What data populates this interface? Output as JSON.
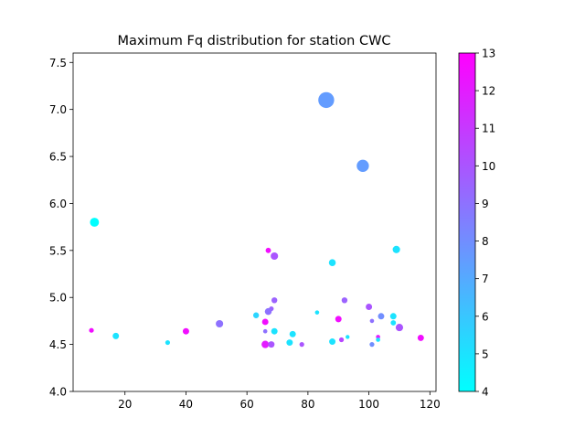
{
  "chart_data": {
    "type": "scatter",
    "title": "Maximum Fq distribution for station CWC",
    "xlabel": "",
    "ylabel": "",
    "xlim": [
      3,
      122
    ],
    "ylim": [
      4.0,
      7.6
    ],
    "xticks": [
      20,
      40,
      60,
      80,
      100,
      120
    ],
    "yticks": [
      4.0,
      4.5,
      5.0,
      5.5,
      6.0,
      6.5,
      7.0,
      7.5
    ],
    "xtick_labels": [
      "20",
      "40",
      "60",
      "80",
      "100",
      "120"
    ],
    "ytick_labels": [
      "4.0",
      "4.5",
      "5.0",
      "5.5",
      "6.0",
      "6.5",
      "7.0",
      "7.5"
    ],
    "grid": false,
    "colorbar": {
      "colormap": "cool",
      "range": [
        4,
        13
      ],
      "ticks": [
        4,
        5,
        6,
        7,
        8,
        9,
        10,
        11,
        12,
        13
      ],
      "tick_labels": [
        "4",
        "5",
        "6",
        "7",
        "8",
        "9",
        "10",
        "11",
        "12",
        "13"
      ],
      "color_low": "#00ffff",
      "color_high": "#ff00ff"
    },
    "points": [
      {
        "x": 86,
        "y": 7.1,
        "c": 7.5,
        "m": 7.1
      },
      {
        "x": 98,
        "y": 6.4,
        "c": 7.5,
        "m": 6.4
      },
      {
        "x": 10,
        "y": 5.8,
        "c": 4.0,
        "m": 5.8
      },
      {
        "x": 109,
        "y": 5.51,
        "c": 5.0,
        "m": 5.5
      },
      {
        "x": 67,
        "y": 5.5,
        "c": 12.5,
        "m": 5.1
      },
      {
        "x": 69,
        "y": 5.44,
        "c": 10.0,
        "m": 5.5
      },
      {
        "x": 88,
        "y": 5.37,
        "c": 5.0,
        "m": 5.4
      },
      {
        "x": 69,
        "y": 4.97,
        "c": 9.5,
        "m": 5.2
      },
      {
        "x": 92,
        "y": 4.97,
        "c": 9.5,
        "m": 5.2
      },
      {
        "x": 100,
        "y": 4.9,
        "c": 10.0,
        "m": 5.3
      },
      {
        "x": 68,
        "y": 4.88,
        "c": 9.5,
        "m": 5.0
      },
      {
        "x": 67,
        "y": 4.85,
        "c": 9.0,
        "m": 5.4
      },
      {
        "x": 83,
        "y": 4.84,
        "c": 5.0,
        "m": 4.9
      },
      {
        "x": 63,
        "y": 4.81,
        "c": 5.5,
        "m": 5.2
      },
      {
        "x": 104,
        "y": 4.8,
        "c": 8.0,
        "m": 5.3
      },
      {
        "x": 108,
        "y": 4.8,
        "c": 5.0,
        "m": 5.3
      },
      {
        "x": 90,
        "y": 4.77,
        "c": 12.5,
        "m": 5.3
      },
      {
        "x": 101,
        "y": 4.75,
        "c": 9.0,
        "m": 4.9
      },
      {
        "x": 66,
        "y": 4.74,
        "c": 12.5,
        "m": 5.3
      },
      {
        "x": 108,
        "y": 4.73,
        "c": 5.0,
        "m": 5.1
      },
      {
        "x": 51,
        "y": 4.72,
        "c": 9.0,
        "m": 5.5
      },
      {
        "x": 110,
        "y": 4.68,
        "c": 10.0,
        "m": 5.5
      },
      {
        "x": 9,
        "y": 4.65,
        "c": 12.5,
        "m": 5.0
      },
      {
        "x": 40,
        "y": 4.64,
        "c": 12.5,
        "m": 5.3
      },
      {
        "x": 66,
        "y": 4.64,
        "c": 9.0,
        "m": 4.9
      },
      {
        "x": 69,
        "y": 4.64,
        "c": 5.0,
        "m": 5.3
      },
      {
        "x": 75,
        "y": 4.61,
        "c": 5.0,
        "m": 5.3
      },
      {
        "x": 17,
        "y": 4.59,
        "c": 5.0,
        "m": 5.3
      },
      {
        "x": 93,
        "y": 4.58,
        "c": 5.0,
        "m": 4.5
      },
      {
        "x": 103,
        "y": 4.58,
        "c": 12.0,
        "m": 4.9
      },
      {
        "x": 117,
        "y": 4.57,
        "c": 12.5,
        "m": 5.3
      },
      {
        "x": 91,
        "y": 4.55,
        "c": 10.5,
        "m": 5.0
      },
      {
        "x": 103,
        "y": 4.55,
        "c": 5.0,
        "m": 4.9
      },
      {
        "x": 88,
        "y": 4.53,
        "c": 5.0,
        "m": 5.3
      },
      {
        "x": 34,
        "y": 4.52,
        "c": 5.0,
        "m": 5.0
      },
      {
        "x": 74,
        "y": 4.52,
        "c": 5.0,
        "m": 5.3
      },
      {
        "x": 66,
        "y": 4.5,
        "c": 12.0,
        "m": 5.5
      },
      {
        "x": 68,
        "y": 4.5,
        "c": 10.0,
        "m": 5.3
      },
      {
        "x": 78,
        "y": 4.5,
        "c": 10.0,
        "m": 5.0
      },
      {
        "x": 101,
        "y": 4.5,
        "c": 8.0,
        "m": 5.0
      }
    ]
  }
}
